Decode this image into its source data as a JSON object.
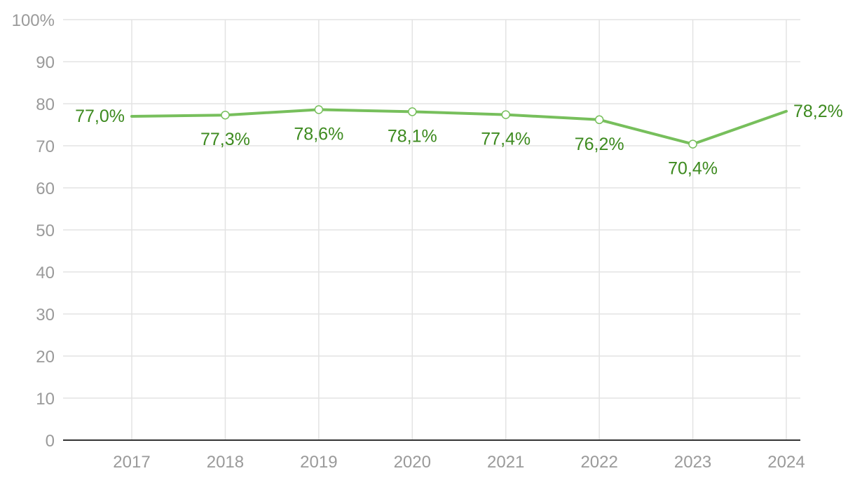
{
  "chart_data": {
    "type": "line",
    "categories": [
      "2017",
      "2018",
      "2019",
      "2020",
      "2021",
      "2022",
      "2023",
      "2024"
    ],
    "series": [
      {
        "values": [
          77.0,
          77.3,
          78.6,
          78.1,
          77.4,
          76.2,
          70.4,
          78.2
        ],
        "labels": [
          "77,0%",
          "77,3%",
          "78,6%",
          "78,1%",
          "77,4%",
          "76,2%",
          "70,4%",
          "78,2%"
        ]
      }
    ],
    "ylim": [
      0,
      100
    ],
    "yticks": [
      "0",
      "10",
      "20",
      "30",
      "40",
      "50",
      "60",
      "70",
      "80",
      "90",
      "100%"
    ],
    "grid": true,
    "legend": "none",
    "colors": {
      "line": "#77bf5c",
      "label": "#3d8a1f",
      "grid": "#e3e3e3",
      "axis": "#333333",
      "tick": "#9a9a9a"
    }
  }
}
